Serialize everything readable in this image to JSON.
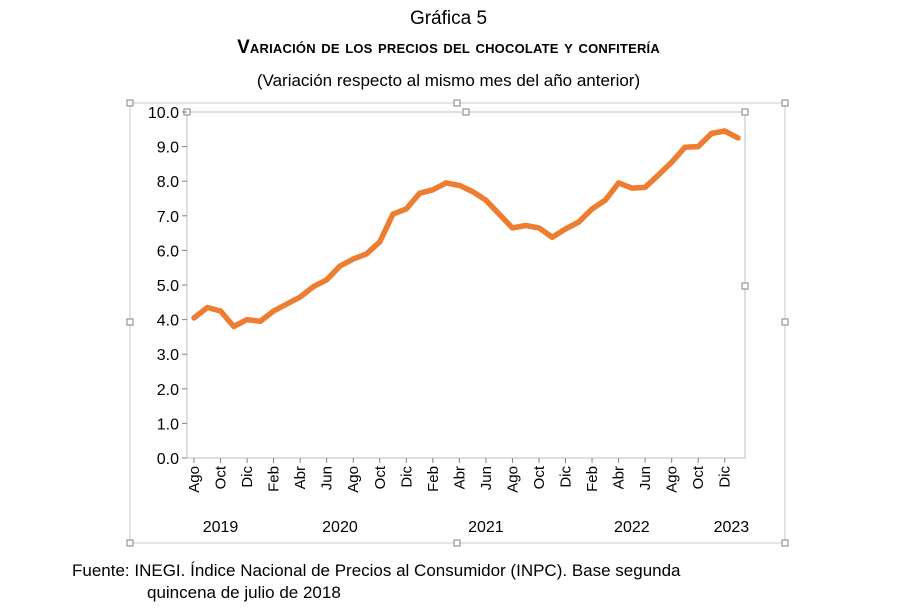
{
  "chart_data": {
    "type": "line",
    "label": "Gráfica 5",
    "title": "Variación de los precios del chocolate y confitería",
    "subtitle": "(Variación respecto al mismo mes del año anterior)",
    "ylim": [
      0,
      10
    ],
    "yticks": [
      "0.0",
      "1.0",
      "2.0",
      "3.0",
      "4.0",
      "5.0",
      "6.0",
      "7.0",
      "8.0",
      "9.0",
      "10.0"
    ],
    "grid": false,
    "legend": "none",
    "line_color": "#ED7D31",
    "x": [
      "Ago 2019",
      "Sep 2019",
      "Oct 2019",
      "Nov 2019",
      "Dic 2019",
      "Ene 2020",
      "Feb 2020",
      "Mar 2020",
      "Abr 2020",
      "May 2020",
      "Jun 2020",
      "Jul 2020",
      "Ago 2020",
      "Sep 2020",
      "Oct 2020",
      "Nov 2020",
      "Dic 2020",
      "Ene 2021",
      "Feb 2021",
      "Mar 2021",
      "Abr 2021",
      "May 2021",
      "Jun 2021",
      "Jul 2021",
      "Ago 2021",
      "Sep 2021",
      "Oct 2021",
      "Nov 2021",
      "Dic 2021",
      "Ene 2022",
      "Feb 2022",
      "Mar 2022",
      "Abr 2022",
      "May 2022",
      "Jun 2022",
      "Jul 2022",
      "Ago 2022",
      "Sep 2022",
      "Oct 2022",
      "Nov 2022",
      "Dic 2022",
      "Ene 2023"
    ],
    "x_tick_labels": [
      "Ago",
      "Oct",
      "Dic",
      "Feb",
      "Abr",
      "Jun",
      "Ago",
      "Oct",
      "Dic",
      "Feb",
      "Abr",
      "Jun",
      "Ago",
      "Oct",
      "Dic",
      "Feb",
      "Abr",
      "Jun",
      "Ago",
      "Oct",
      "Dic"
    ],
    "year_labels": [
      {
        "label": "2019",
        "center_index": 2
      },
      {
        "label": "2020",
        "center_index": 11
      },
      {
        "label": "2021",
        "center_index": 22
      },
      {
        "label": "2022",
        "center_index": 33
      },
      {
        "label": "2023",
        "center_index": 40.5
      }
    ],
    "series": [
      {
        "values": [
          4.05,
          4.35,
          4.25,
          3.8,
          4.0,
          3.95,
          4.25,
          4.45,
          4.65,
          4.95,
          5.15,
          5.55,
          5.75,
          5.9,
          6.25,
          7.05,
          7.2,
          7.65,
          7.75,
          7.95,
          7.88,
          7.7,
          7.45,
          7.05,
          6.65,
          6.72,
          6.65,
          6.38,
          6.62,
          6.82,
          7.2,
          7.45,
          7.95,
          7.8,
          7.82,
          8.18,
          8.55,
          8.98,
          9.0,
          9.38,
          9.45,
          9.25
        ]
      }
    ]
  },
  "source": {
    "line1": "Fuente: INEGI. Índice Nacional de Precios al Consumidor (INPC). Base segunda",
    "line2": "quincena de julio de 2018"
  }
}
